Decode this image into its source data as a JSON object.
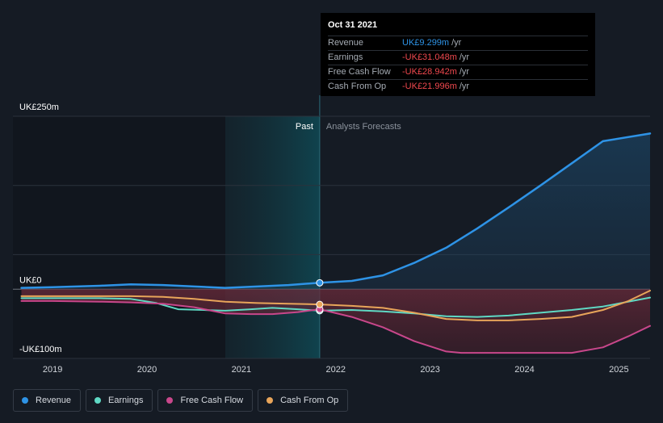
{
  "tooltip": {
    "date": "Oct 31 2021",
    "rows": [
      {
        "name": "Revenue",
        "value": "UK£9.299m",
        "unit": "/yr",
        "color": "#2e93e6"
      },
      {
        "name": "Earnings",
        "value": "-UK£31.048m",
        "unit": "/yr",
        "color": "#f0484e"
      },
      {
        "name": "Free Cash Flow",
        "value": "-UK£28.942m",
        "unit": "/yr",
        "color": "#f0484e"
      },
      {
        "name": "Cash From Op",
        "value": "-UK£21.996m",
        "unit": "/yr",
        "color": "#f0484e"
      }
    ]
  },
  "regions": {
    "past": "Past",
    "forecast": "Analysts Forecasts"
  },
  "legend": [
    {
      "name": "Revenue",
      "color": "#2e93e6"
    },
    {
      "name": "Earnings",
      "color": "#5fd9c4"
    },
    {
      "name": "Free Cash Flow",
      "color": "#c8478b"
    },
    {
      "name": "Cash From Op",
      "color": "#e8a55a"
    }
  ],
  "chart_data": {
    "type": "line",
    "y_tick_labels": [
      "UK£250m",
      "UK£0",
      "-UK£100m"
    ],
    "y_ticks": [
      250,
      0,
      -100
    ],
    "ylim": [
      -100,
      250
    ],
    "x_tick_labels": [
      "2019",
      "2020",
      "2021",
      "2022",
      "2023",
      "2024",
      "2025"
    ],
    "x_ticks": [
      2019.0,
      2020.0,
      2021.0,
      2022.0,
      2023.0,
      2024.0,
      2025.0
    ],
    "xlim": [
      2018.58,
      2025.33
    ],
    "past_start": 2020.83,
    "current": 2021.83,
    "grid": true,
    "series": [
      {
        "name": "Revenue",
        "color": "#2e93e6",
        "marker_x": 2021.83,
        "points": [
          [
            2018.67,
            2
          ],
          [
            2019.0,
            3
          ],
          [
            2019.5,
            5
          ],
          [
            2019.83,
            7
          ],
          [
            2020.17,
            6
          ],
          [
            2020.5,
            4
          ],
          [
            2020.83,
            2
          ],
          [
            2021.17,
            4
          ],
          [
            2021.5,
            6
          ],
          [
            2021.83,
            9.3
          ],
          [
            2022.17,
            12
          ],
          [
            2022.5,
            20
          ],
          [
            2022.83,
            38
          ],
          [
            2023.17,
            60
          ],
          [
            2023.5,
            88
          ],
          [
            2023.83,
            118
          ],
          [
            2024.17,
            150
          ],
          [
            2024.5,
            182
          ],
          [
            2024.83,
            214
          ],
          [
            2025.33,
            225
          ]
        ]
      },
      {
        "name": "Earnings",
        "color": "#5fd9c4",
        "marker_x": 2021.83,
        "points": [
          [
            2018.67,
            -13
          ],
          [
            2019.0,
            -13
          ],
          [
            2019.5,
            -13
          ],
          [
            2019.83,
            -14
          ],
          [
            2020.1,
            -20
          ],
          [
            2020.33,
            -29
          ],
          [
            2020.6,
            -30
          ],
          [
            2020.83,
            -31
          ],
          [
            2021.1,
            -29
          ],
          [
            2021.33,
            -27
          ],
          [
            2021.6,
            -29
          ],
          [
            2021.83,
            -31
          ],
          [
            2022.17,
            -30
          ],
          [
            2022.5,
            -32
          ],
          [
            2022.83,
            -35
          ],
          [
            2023.17,
            -39
          ],
          [
            2023.5,
            -40
          ],
          [
            2023.83,
            -38
          ],
          [
            2024.17,
            -34
          ],
          [
            2024.5,
            -30
          ],
          [
            2024.83,
            -25
          ],
          [
            2025.33,
            -12
          ]
        ]
      },
      {
        "name": "Free Cash Flow",
        "color": "#c8478b",
        "marker_x": 2021.83,
        "points": [
          [
            2018.67,
            -17
          ],
          [
            2019.0,
            -17
          ],
          [
            2019.5,
            -18
          ],
          [
            2019.83,
            -19
          ],
          [
            2020.17,
            -21
          ],
          [
            2020.5,
            -26
          ],
          [
            2020.83,
            -35
          ],
          [
            2021.1,
            -36
          ],
          [
            2021.33,
            -36
          ],
          [
            2021.6,
            -33
          ],
          [
            2021.83,
            -29
          ],
          [
            2022.17,
            -40
          ],
          [
            2022.5,
            -55
          ],
          [
            2022.83,
            -75
          ],
          [
            2023.17,
            -90
          ],
          [
            2023.33,
            -92
          ],
          [
            2023.83,
            -92
          ],
          [
            2024.17,
            -92
          ],
          [
            2024.5,
            -92
          ],
          [
            2024.83,
            -84
          ],
          [
            2025.1,
            -68
          ],
          [
            2025.33,
            -53
          ]
        ]
      },
      {
        "name": "Cash From Op",
        "color": "#e8a55a",
        "marker_x": 2021.83,
        "points": [
          [
            2018.67,
            -10
          ],
          [
            2019.0,
            -10
          ],
          [
            2019.5,
            -10
          ],
          [
            2019.83,
            -10
          ],
          [
            2020.17,
            -11
          ],
          [
            2020.5,
            -14
          ],
          [
            2020.83,
            -18
          ],
          [
            2021.17,
            -20
          ],
          [
            2021.5,
            -21
          ],
          [
            2021.83,
            -22
          ],
          [
            2022.17,
            -24
          ],
          [
            2022.5,
            -27
          ],
          [
            2022.83,
            -34
          ],
          [
            2023.17,
            -43
          ],
          [
            2023.5,
            -45
          ],
          [
            2023.83,
            -45
          ],
          [
            2024.17,
            -43
          ],
          [
            2024.5,
            -40
          ],
          [
            2024.83,
            -30
          ],
          [
            2025.1,
            -17
          ],
          [
            2025.33,
            -2
          ]
        ]
      }
    ]
  }
}
